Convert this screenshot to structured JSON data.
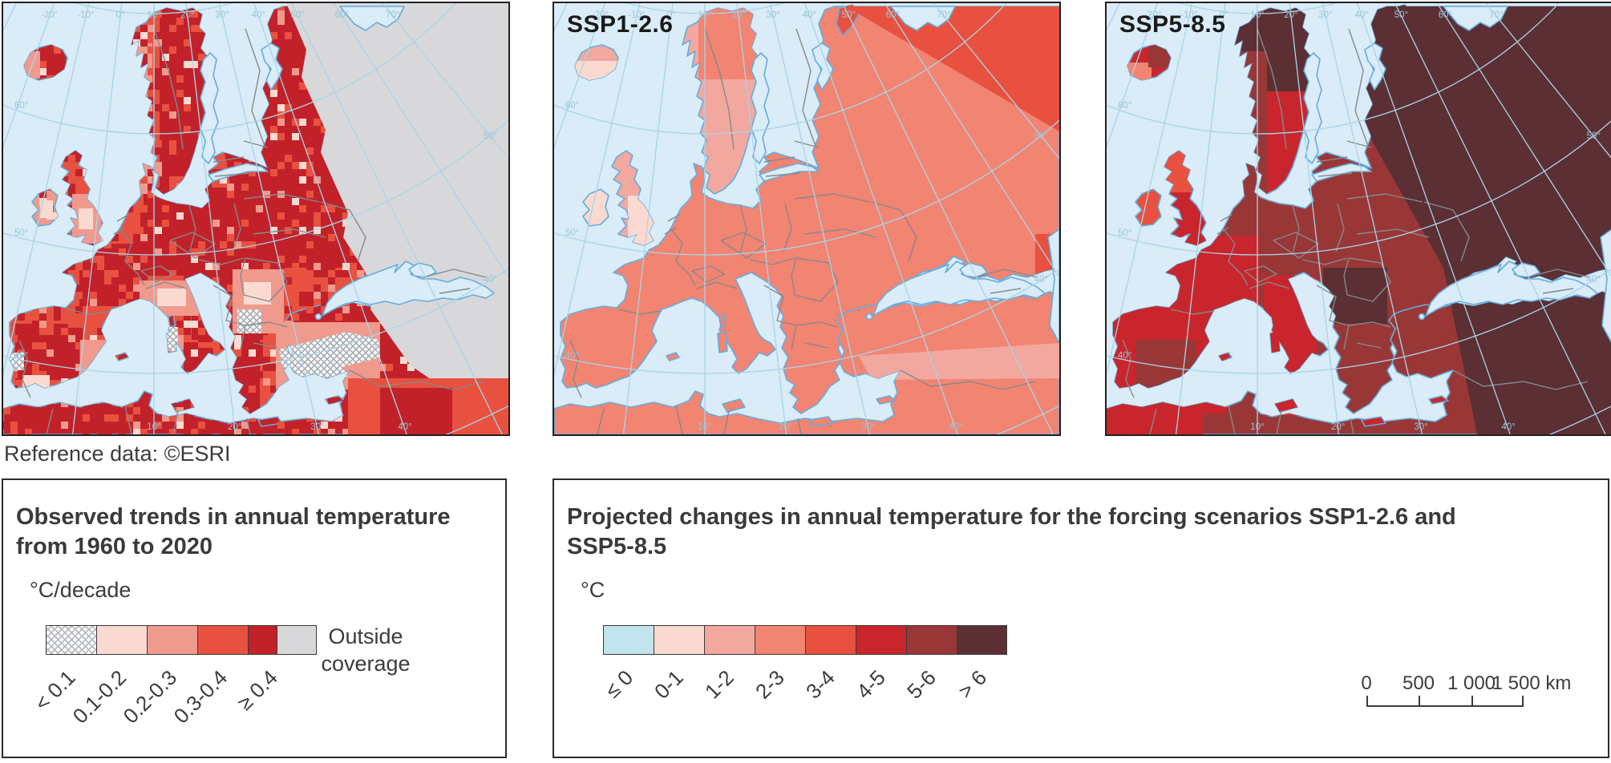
{
  "reference": "Reference data: ©ESRI",
  "panels": [
    {
      "id": "observed",
      "label": "",
      "palette": "observed",
      "region_classes": {
        "mainland": 3,
        "africa_mideast": 4,
        "scandinavia": 3,
        "uk": 3,
        "ireland": 2,
        "iceland": 4,
        "islands": 4
      },
      "has_noise": true,
      "has_outside_coverage": true
    },
    {
      "id": "ssp126",
      "label": "SSP1-2.6",
      "palette": "projected",
      "region_classes": {
        "mainland": 3,
        "africa_mideast": 3,
        "scandinavia": 2,
        "uk": 2,
        "ireland": 1,
        "iceland": 2,
        "islands": 3,
        "novaya": 4
      }
    },
    {
      "id": "ssp585",
      "label": "SSP5-8.5",
      "palette": "projected",
      "region_classes": {
        "mainland": 6,
        "africa_mideast": 6,
        "scandinavia": 5,
        "uk": 5,
        "ireland": 4,
        "iceland": 5,
        "islands": 5,
        "novaya": 7
      }
    }
  ],
  "legend_observed": {
    "title_line1": "Observed trends in annual temperature",
    "title_line2": "from 1960 to 2020",
    "unit": "°C/decade",
    "classes": [
      {
        "label": "< 0.1",
        "color": "hatch"
      },
      {
        "label": "0.1-0.2",
        "color": "#fadad0"
      },
      {
        "label": "0.2-0.3",
        "color": "#f09a8d"
      },
      {
        "label": "0.3-0.4",
        "color": "#e8513f"
      },
      {
        "label": "≥ 0.4",
        "color": "#c2212a"
      }
    ],
    "outside": {
      "label_line1": "Outside",
      "label_line2": "coverage",
      "color": "#d8d8da"
    }
  },
  "legend_projected": {
    "title_line1": "Projected changes in annual temperature for the forcing scenarios SSP1-2.6 and",
    "title_line2": "SSP5-8.5",
    "unit": "°C",
    "classes": [
      {
        "label": "≤ 0",
        "color": "#c2e4ee"
      },
      {
        "label": "0-1",
        "color": "#fadad0"
      },
      {
        "label": "1-2",
        "color": "#f2a89f"
      },
      {
        "label": "2-3",
        "color": "#f28472"
      },
      {
        "label": "3-4",
        "color": "#e8513f"
      },
      {
        "label": "4-5",
        "color": "#c8262c"
      },
      {
        "label": "5-6",
        "color": "#993737"
      },
      {
        "label": "> 6",
        "color": "#5b2f33"
      }
    ]
  },
  "scalebar": {
    "ticks": [
      "0",
      "500",
      "1 000",
      "1 500"
    ],
    "unit": "km"
  },
  "graticule": {
    "top_labels": [
      "-30°",
      "-20°",
      "-10°",
      "0°",
      "10°",
      "20°",
      "30°",
      "40°",
      "50°",
      "60°",
      "70°"
    ],
    "bottom_labels": [
      "10°",
      "20°",
      "30°",
      "40°"
    ],
    "left_labels": [
      "60°",
      "50°",
      "40°"
    ],
    "right_labels": [
      "50°",
      "40°"
    ]
  },
  "map_colors": {
    "sea": "#d9ecf7",
    "coastline": "#66abde",
    "graticule_line": "#a9d4e8",
    "graticule_text": "#99c5da",
    "country_border": "#85898c",
    "outside_coverage": "#d8d8da",
    "panel_border": "#231f20"
  }
}
